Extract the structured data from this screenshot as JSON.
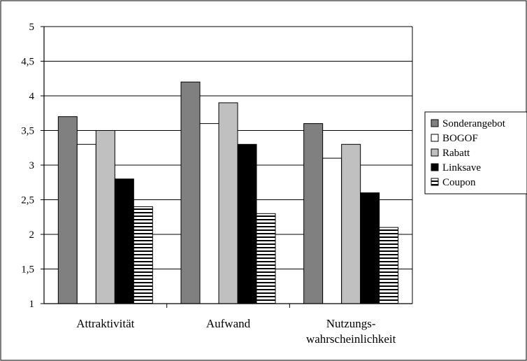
{
  "chart_data": {
    "type": "bar",
    "categories": [
      "Attraktivität",
      "Aufwand",
      "Nutzungs-\nwahrscheinlichkeit"
    ],
    "series": [
      {
        "name": "Sonderangebot",
        "values": [
          3.7,
          4.2,
          3.6
        ],
        "color": "#808080",
        "pattern": "solid"
      },
      {
        "name": "BOGOF",
        "values": [
          3.3,
          3.6,
          3.1
        ],
        "color": "#ffffff",
        "pattern": "solid"
      },
      {
        "name": "Rabatt",
        "values": [
          3.5,
          3.9,
          3.3
        ],
        "color": "#c0c0c0",
        "pattern": "solid"
      },
      {
        "name": "Linksave",
        "values": [
          2.8,
          3.3,
          2.6
        ],
        "color": "#000000",
        "pattern": "solid"
      },
      {
        "name": "Coupon",
        "values": [
          2.4,
          2.3,
          2.1
        ],
        "color": "#ffffff",
        "pattern": "horizontal-stripes"
      }
    ],
    "y_ticks": [
      "1",
      "1,5",
      "2",
      "2,5",
      "3",
      "3,5",
      "4",
      "4,5",
      "5"
    ],
    "ylim": [
      1,
      5
    ],
    "grid": true,
    "legend_position": "right",
    "title": "",
    "xlabel": "",
    "ylabel": ""
  }
}
